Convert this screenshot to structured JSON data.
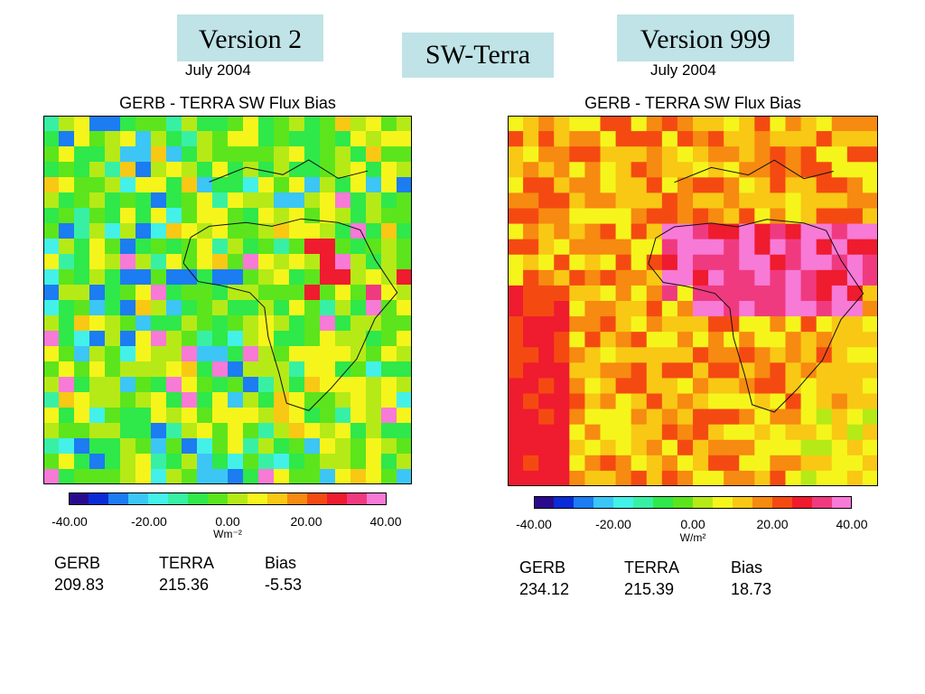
{
  "labels": {
    "left": "Version 2",
    "center": "SW-Terra",
    "right": "Version 999"
  },
  "colorscale": [
    "#2a0a8c",
    "#0a2bd6",
    "#1c7cf2",
    "#3cc6f5",
    "#43f1e8",
    "#38f0a4",
    "#2fe84a",
    "#5ce51c",
    "#b5ea17",
    "#f5f51c",
    "#f8c815",
    "#f78a10",
    "#f44a12",
    "#ef1b2e",
    "#f03a80",
    "#f77ad6"
  ],
  "chart_data": [
    {
      "type": "heatmap",
      "subtitle": "July 2004",
      "title": "GERB - TERRA SW Flux Bias",
      "colorbar": {
        "range": [
          -40,
          40
        ],
        "ticks": [
          "-40.00",
          "-20.00",
          "0.00",
          "20.00",
          "40.00"
        ],
        "unit": "Wm⁻²"
      },
      "stats": {
        "headers": [
          "GERB",
          "TERRA",
          "Bias"
        ],
        "values": [
          "209.83",
          "215.36",
          "-5.53"
        ]
      },
      "mean_bias": -5.53,
      "pattern": "green"
    },
    {
      "type": "heatmap",
      "subtitle": "July 2004",
      "title": "GERB - TERRA SW Flux Bias",
      "colorbar": {
        "range": [
          -40,
          40
        ],
        "ticks": [
          "-40.00",
          "-20.00",
          "0.00",
          "20.00",
          "40.00"
        ],
        "unit": "W/m²"
      },
      "stats": {
        "headers": [
          "GERB",
          "TERRA",
          "Bias"
        ],
        "values": [
          "234.12",
          "215.39",
          "18.73"
        ]
      },
      "mean_bias": 18.73,
      "pattern": "warm"
    }
  ]
}
